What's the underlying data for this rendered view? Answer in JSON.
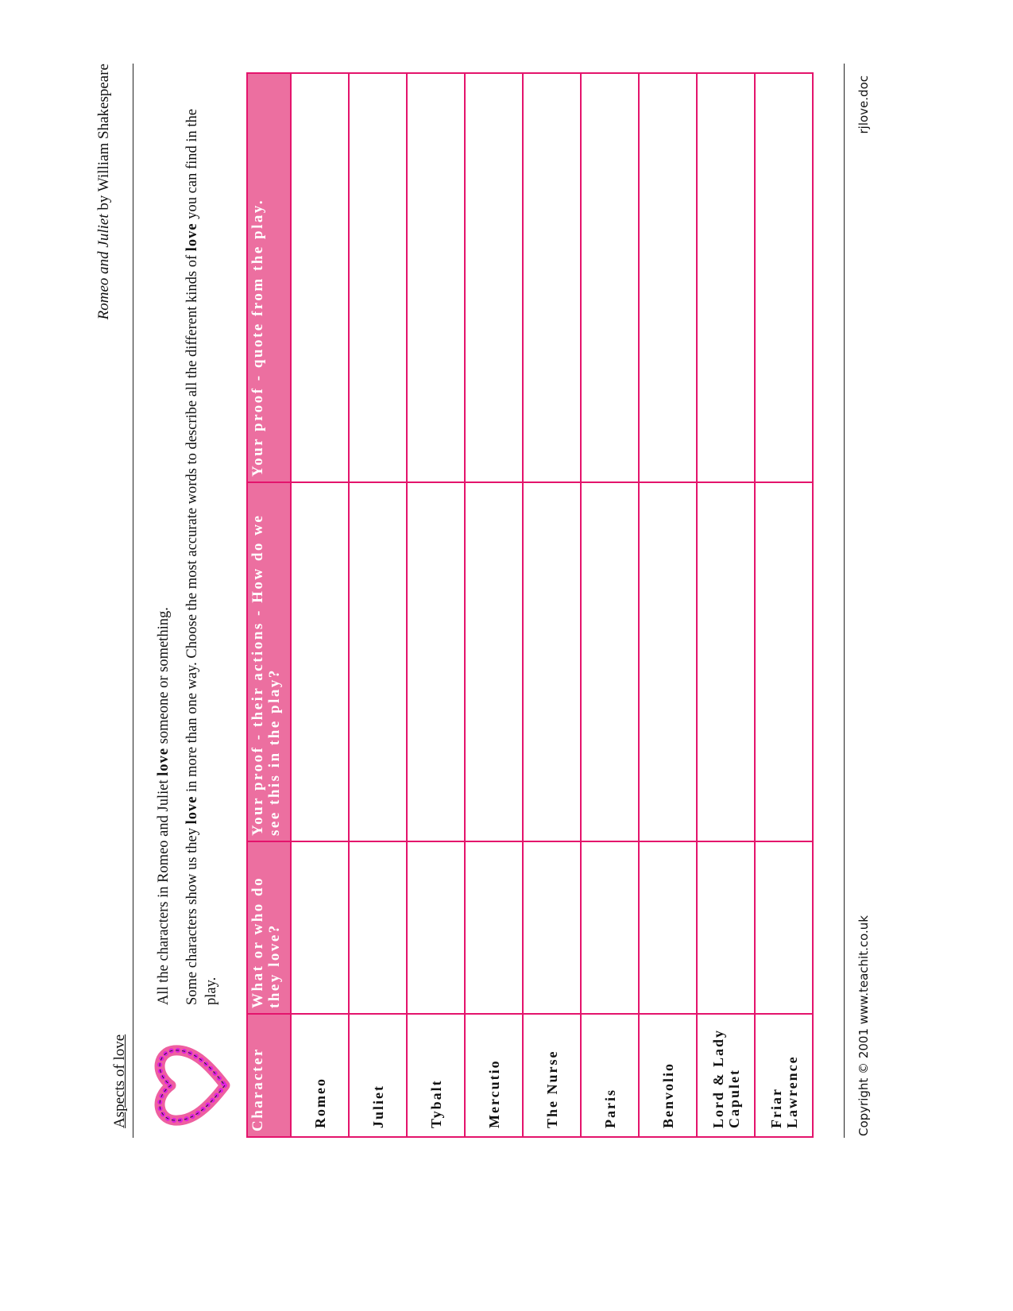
{
  "header": {
    "left": "Aspects of love",
    "right_title": "Romeo and Juliet",
    "right_rest": " by William Shakespeare"
  },
  "intro": {
    "line1_a": "All the characters in Romeo and Juliet ",
    "line1_bold": "love",
    "line1_b": " someone or something.",
    "line2_a": "Some characters show us they ",
    "line2_bold": "love",
    "line2_b": " in more than one way. Choose the most accurate words to describe all the different kinds of ",
    "line2_bold2": "love",
    "line2_c": " you can find in the play."
  },
  "table": {
    "headers": [
      "Character",
      "What or who do they love?",
      "Your proof - their actions - How do we see this in the play?",
      "Your proof - quote from the play."
    ],
    "rows": [
      "Romeo",
      "Juliet",
      "Tybalt",
      "Mercutio",
      "The Nurse",
      "Paris",
      "Benvolio",
      "Lord & Lady Capulet",
      "Friar Lawrence"
    ]
  },
  "footer": {
    "copyright": "Copyright © 2001 www.teachit.co.uk",
    "filename": "rjlove.doc"
  },
  "colors": {
    "header_fill": "#ec6fa0",
    "border": "#e4146c",
    "heart": "#ee5fa0",
    "heart_dots": "#e020e0"
  },
  "icons": {
    "decoration": "heart-icon"
  }
}
